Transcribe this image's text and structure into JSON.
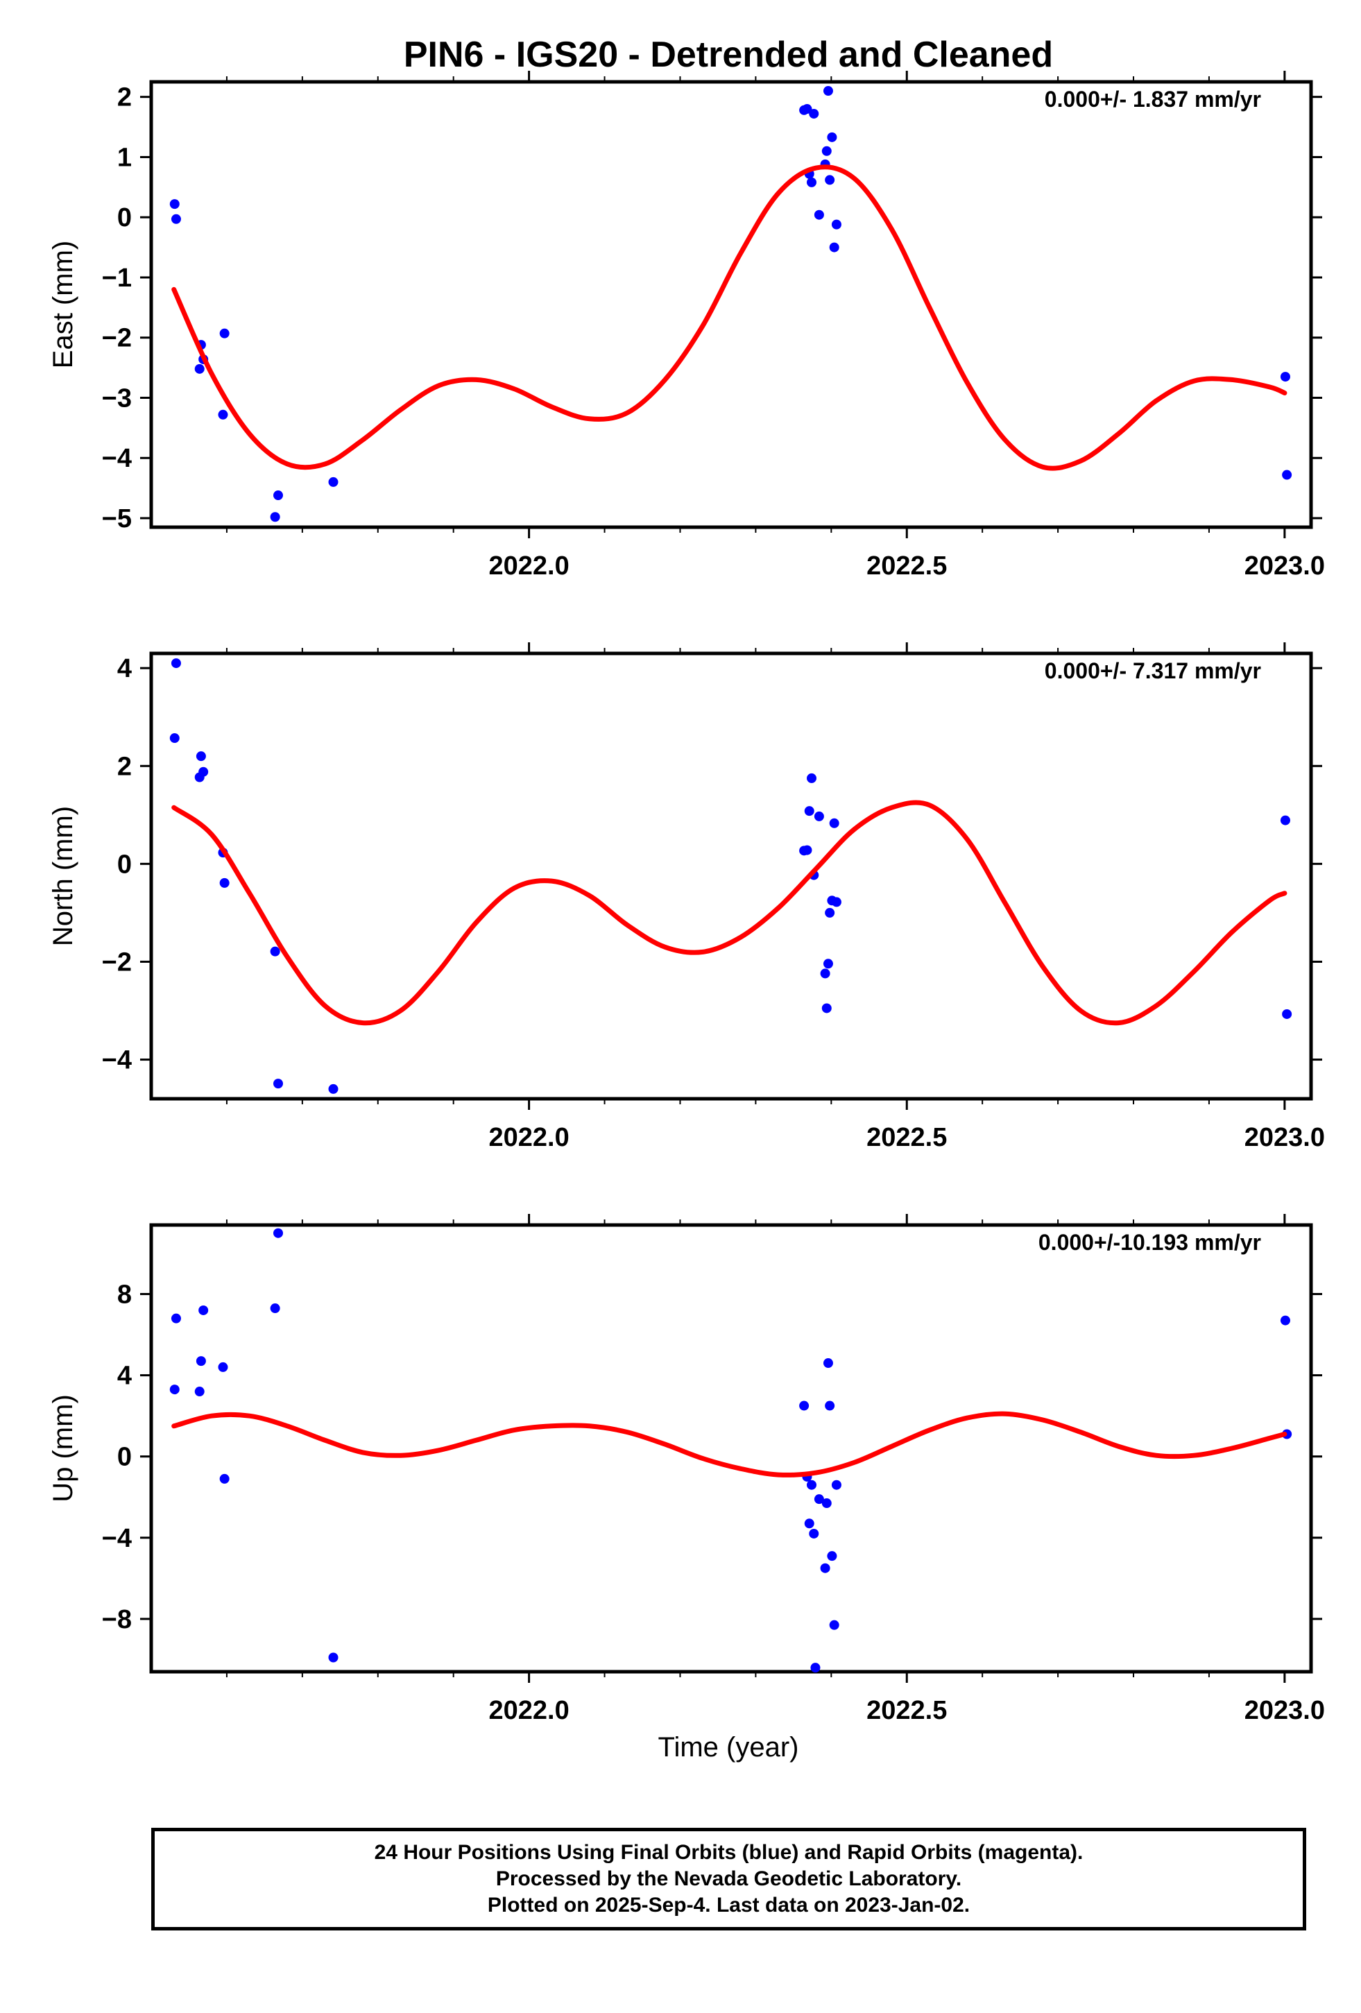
{
  "title": "PIN6 - IGS20 - Detrended and Cleaned",
  "xlabel": "Time (year)",
  "colors": {
    "final_orbits": "#0000ff",
    "fit_curve": "#ff0000",
    "frame": "#000000"
  },
  "caption": {
    "line1": "24 Hour Positions Using Final Orbits (blue) and Rapid Orbits (magenta).",
    "line2": "Processed by the Nevada Geodetic Laboratory.",
    "line3": "Plotted on 2025-Sep-4. Last data on 2023-Jan-02."
  },
  "chart_data": [
    {
      "type": "scatter",
      "panel": "east",
      "ylabel": "East (mm)",
      "rate_label": "0.000+/- 1.837 mm/yr",
      "xlim": [
        2021.5,
        2023.035
      ],
      "ylim": [
        -5.15,
        2.25
      ],
      "xticks": [
        2022.0,
        2022.5,
        2023.0
      ],
      "xtick_labels": [
        "2022.0",
        "2022.5",
        "2023.0"
      ],
      "yticks": [
        2,
        1,
        0,
        -1,
        -2,
        -3,
        -4,
        -5
      ],
      "ytick_labels": [
        "2",
        "1",
        "0",
        "−1",
        "−2",
        "−3",
        "−4",
        "−5"
      ],
      "points": [
        [
          2021.531,
          0.22
        ],
        [
          2021.533,
          -0.03
        ],
        [
          2021.564,
          -2.52
        ],
        [
          2021.566,
          -2.12
        ],
        [
          2021.569,
          -2.36
        ],
        [
          2021.595,
          -3.28
        ],
        [
          2021.597,
          -1.93
        ],
        [
          2021.664,
          -4.98
        ],
        [
          2021.668,
          -4.62
        ],
        [
          2021.741,
          -4.4
        ],
        [
          2022.364,
          1.78
        ],
        [
          2022.368,
          1.8
        ],
        [
          2022.371,
          0.72
        ],
        [
          2022.374,
          0.58
        ],
        [
          2022.377,
          1.72
        ],
        [
          2022.384,
          0.04
        ],
        [
          2022.392,
          0.88
        ],
        [
          2022.394,
          1.1
        ],
        [
          2022.396,
          2.1
        ],
        [
          2022.398,
          0.62
        ],
        [
          2022.401,
          1.33
        ],
        [
          2022.404,
          -0.5
        ],
        [
          2022.407,
          -0.12
        ],
        [
          2023.001,
          -2.65
        ],
        [
          2023.003,
          -4.28
        ]
      ],
      "fit": {
        "x": [
          2021.53,
          2021.58,
          2021.63,
          2021.68,
          2021.73,
          2021.78,
          2021.83,
          2021.88,
          2021.93,
          2021.98,
          2022.03,
          2022.08,
          2022.13,
          2022.18,
          2022.23,
          2022.28,
          2022.33,
          2022.38,
          2022.43,
          2022.48,
          2022.53,
          2022.58,
          2022.63,
          2022.68,
          2022.73,
          2022.78,
          2022.83,
          2022.88,
          2022.93,
          2022.98,
          2023.0
        ],
        "y": [
          -1.2,
          -2.6,
          -3.6,
          -4.1,
          -4.1,
          -3.7,
          -3.2,
          -2.8,
          -2.7,
          -2.85,
          -3.15,
          -3.35,
          -3.25,
          -2.7,
          -1.8,
          -0.6,
          0.4,
          0.82,
          0.65,
          -0.2,
          -1.5,
          -2.75,
          -3.7,
          -4.15,
          -4.05,
          -3.6,
          -3.05,
          -2.72,
          -2.7,
          -2.82,
          -2.92
        ]
      }
    },
    {
      "type": "scatter",
      "panel": "north",
      "ylabel": "North (mm)",
      "rate_label": "0.000+/- 7.317 mm/yr",
      "xlim": [
        2021.5,
        2023.035
      ],
      "ylim": [
        -4.8,
        4.3
      ],
      "xticks": [
        2022.0,
        2022.5,
        2023.0
      ],
      "xtick_labels": [
        "2022.0",
        "2022.5",
        "2023.0"
      ],
      "yticks": [
        4,
        2,
        0,
        -2,
        -4
      ],
      "ytick_labels": [
        "4",
        "2",
        "0",
        "−2",
        "−4"
      ],
      "points": [
        [
          2021.531,
          2.57
        ],
        [
          2021.533,
          4.1
        ],
        [
          2021.564,
          1.77
        ],
        [
          2021.566,
          2.2
        ],
        [
          2021.569,
          1.88
        ],
        [
          2021.595,
          0.23
        ],
        [
          2021.597,
          -0.39
        ],
        [
          2021.664,
          -1.79
        ],
        [
          2021.668,
          -4.49
        ],
        [
          2021.741,
          -4.6
        ],
        [
          2022.364,
          0.27
        ],
        [
          2022.368,
          0.28
        ],
        [
          2022.371,
          1.08
        ],
        [
          2022.374,
          1.75
        ],
        [
          2022.377,
          -0.23
        ],
        [
          2022.384,
          0.97
        ],
        [
          2022.392,
          -2.24
        ],
        [
          2022.394,
          -2.95
        ],
        [
          2022.396,
          -2.04
        ],
        [
          2022.398,
          -1.0
        ],
        [
          2022.401,
          -0.75
        ],
        [
          2022.404,
          0.83
        ],
        [
          2022.407,
          -0.78
        ],
        [
          2023.001,
          0.89
        ],
        [
          2023.003,
          -3.07
        ]
      ],
      "fit": {
        "x": [
          2021.53,
          2021.58,
          2021.63,
          2021.68,
          2021.73,
          2021.78,
          2021.83,
          2021.88,
          2021.93,
          2021.98,
          2022.03,
          2022.08,
          2022.13,
          2022.18,
          2022.23,
          2022.28,
          2022.33,
          2022.38,
          2022.43,
          2022.48,
          2022.53,
          2022.58,
          2022.63,
          2022.68,
          2022.73,
          2022.78,
          2022.83,
          2022.88,
          2022.93,
          2022.98,
          2023.0
        ],
        "y": [
          1.15,
          0.6,
          -0.6,
          -1.9,
          -2.9,
          -3.25,
          -3.0,
          -2.2,
          -1.2,
          -0.5,
          -0.35,
          -0.65,
          -1.25,
          -1.7,
          -1.8,
          -1.5,
          -0.9,
          -0.1,
          0.7,
          1.15,
          1.2,
          0.5,
          -0.8,
          -2.1,
          -3.0,
          -3.25,
          -2.9,
          -2.2,
          -1.4,
          -0.75,
          -0.6
        ]
      }
    },
    {
      "type": "scatter",
      "panel": "up",
      "ylabel": "Up (mm)",
      "rate_label": "0.000+/-10.193 mm/yr",
      "xlim": [
        2021.5,
        2023.035
      ],
      "ylim": [
        -10.6,
        11.4
      ],
      "xticks": [
        2022.0,
        2022.5,
        2023.0
      ],
      "xtick_labels": [
        "2022.0",
        "2022.5",
        "2023.0"
      ],
      "yticks": [
        8,
        4,
        0,
        -4,
        -8
      ],
      "ytick_labels": [
        "8",
        "4",
        "0",
        "−4",
        "−8"
      ],
      "points": [
        [
          2021.531,
          3.3
        ],
        [
          2021.533,
          6.8
        ],
        [
          2021.564,
          3.2
        ],
        [
          2021.566,
          4.7
        ],
        [
          2021.569,
          7.2
        ],
        [
          2021.595,
          4.4
        ],
        [
          2021.597,
          -1.1
        ],
        [
          2021.664,
          7.3
        ],
        [
          2021.668,
          11.0
        ],
        [
          2021.741,
          -9.9
        ],
        [
          2022.364,
          2.5
        ],
        [
          2022.368,
          -1.0
        ],
        [
          2022.371,
          -3.3
        ],
        [
          2022.374,
          -1.4
        ],
        [
          2022.377,
          -3.8
        ],
        [
          2022.384,
          -2.1
        ],
        [
          2022.392,
          -5.5
        ],
        [
          2022.394,
          -2.3
        ],
        [
          2022.396,
          4.6
        ],
        [
          2022.398,
          2.5
        ],
        [
          2022.401,
          -4.9
        ],
        [
          2022.404,
          -8.3
        ],
        [
          2022.407,
          -1.4
        ],
        [
          2022.379,
          -10.4
        ],
        [
          2023.001,
          6.7
        ],
        [
          2023.003,
          1.1
        ]
      ],
      "fit": {
        "x": [
          2021.53,
          2021.58,
          2021.63,
          2021.68,
          2021.73,
          2021.78,
          2021.83,
          2021.88,
          2021.93,
          2021.98,
          2022.03,
          2022.08,
          2022.13,
          2022.18,
          2022.23,
          2022.28,
          2022.33,
          2022.38,
          2022.43,
          2022.48,
          2022.53,
          2022.58,
          2022.63,
          2022.68,
          2022.73,
          2022.78,
          2022.83,
          2022.88,
          2022.93,
          2022.98,
          2023.0
        ],
        "y": [
          1.5,
          2.0,
          2.0,
          1.5,
          0.8,
          0.2,
          0.05,
          0.3,
          0.8,
          1.3,
          1.5,
          1.5,
          1.2,
          0.6,
          -0.1,
          -0.6,
          -0.9,
          -0.8,
          -0.3,
          0.5,
          1.3,
          1.9,
          2.1,
          1.8,
          1.2,
          0.5,
          0.05,
          0.05,
          0.4,
          0.9,
          1.1
        ]
      }
    }
  ]
}
